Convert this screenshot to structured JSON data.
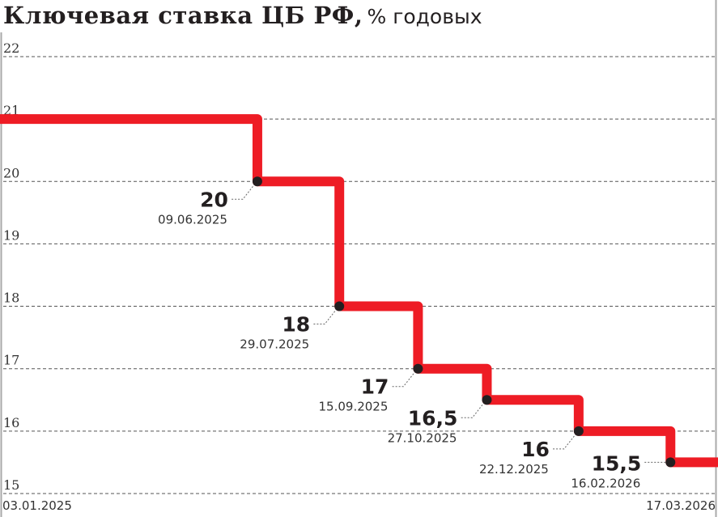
{
  "chart_data": {
    "type": "line",
    "step": true,
    "title": "Ключевая ставка ЦБ РФ,",
    "subtitle": "% годовых",
    "xlabel": "",
    "ylabel": "",
    "ylim": [
      15,
      22
    ],
    "yticks": [
      "15",
      "16",
      "17",
      "18",
      "19",
      "20",
      "21",
      "22"
    ],
    "grid": true,
    "x_start_label": "03.01.2025",
    "x_end_label": "17.03.2026",
    "x_range": [
      "2025-01-03",
      "2026-03-17"
    ],
    "initial_value": 21,
    "points": [
      {
        "date": "2025-06-09",
        "date_label": "09.06.2025",
        "value": 20,
        "value_label": "20"
      },
      {
        "date": "2025-07-29",
        "date_label": "29.07.2025",
        "value": 18,
        "value_label": "18"
      },
      {
        "date": "2025-09-15",
        "date_label": "15.09.2025",
        "value": 17,
        "value_label": "17"
      },
      {
        "date": "2025-10-27",
        "date_label": "27.10.2025",
        "value": 16.5,
        "value_label": "16,5"
      },
      {
        "date": "2025-12-22",
        "date_label": "22.12.2025",
        "value": 16,
        "value_label": "16"
      },
      {
        "date": "2026-02-16",
        "date_label": "16.02.2026",
        "value": 15.5,
        "value_label": "15,5"
      }
    ],
    "colors": {
      "line": "#ee1c25",
      "dot": "#231f20",
      "grid": "#555555"
    }
  }
}
